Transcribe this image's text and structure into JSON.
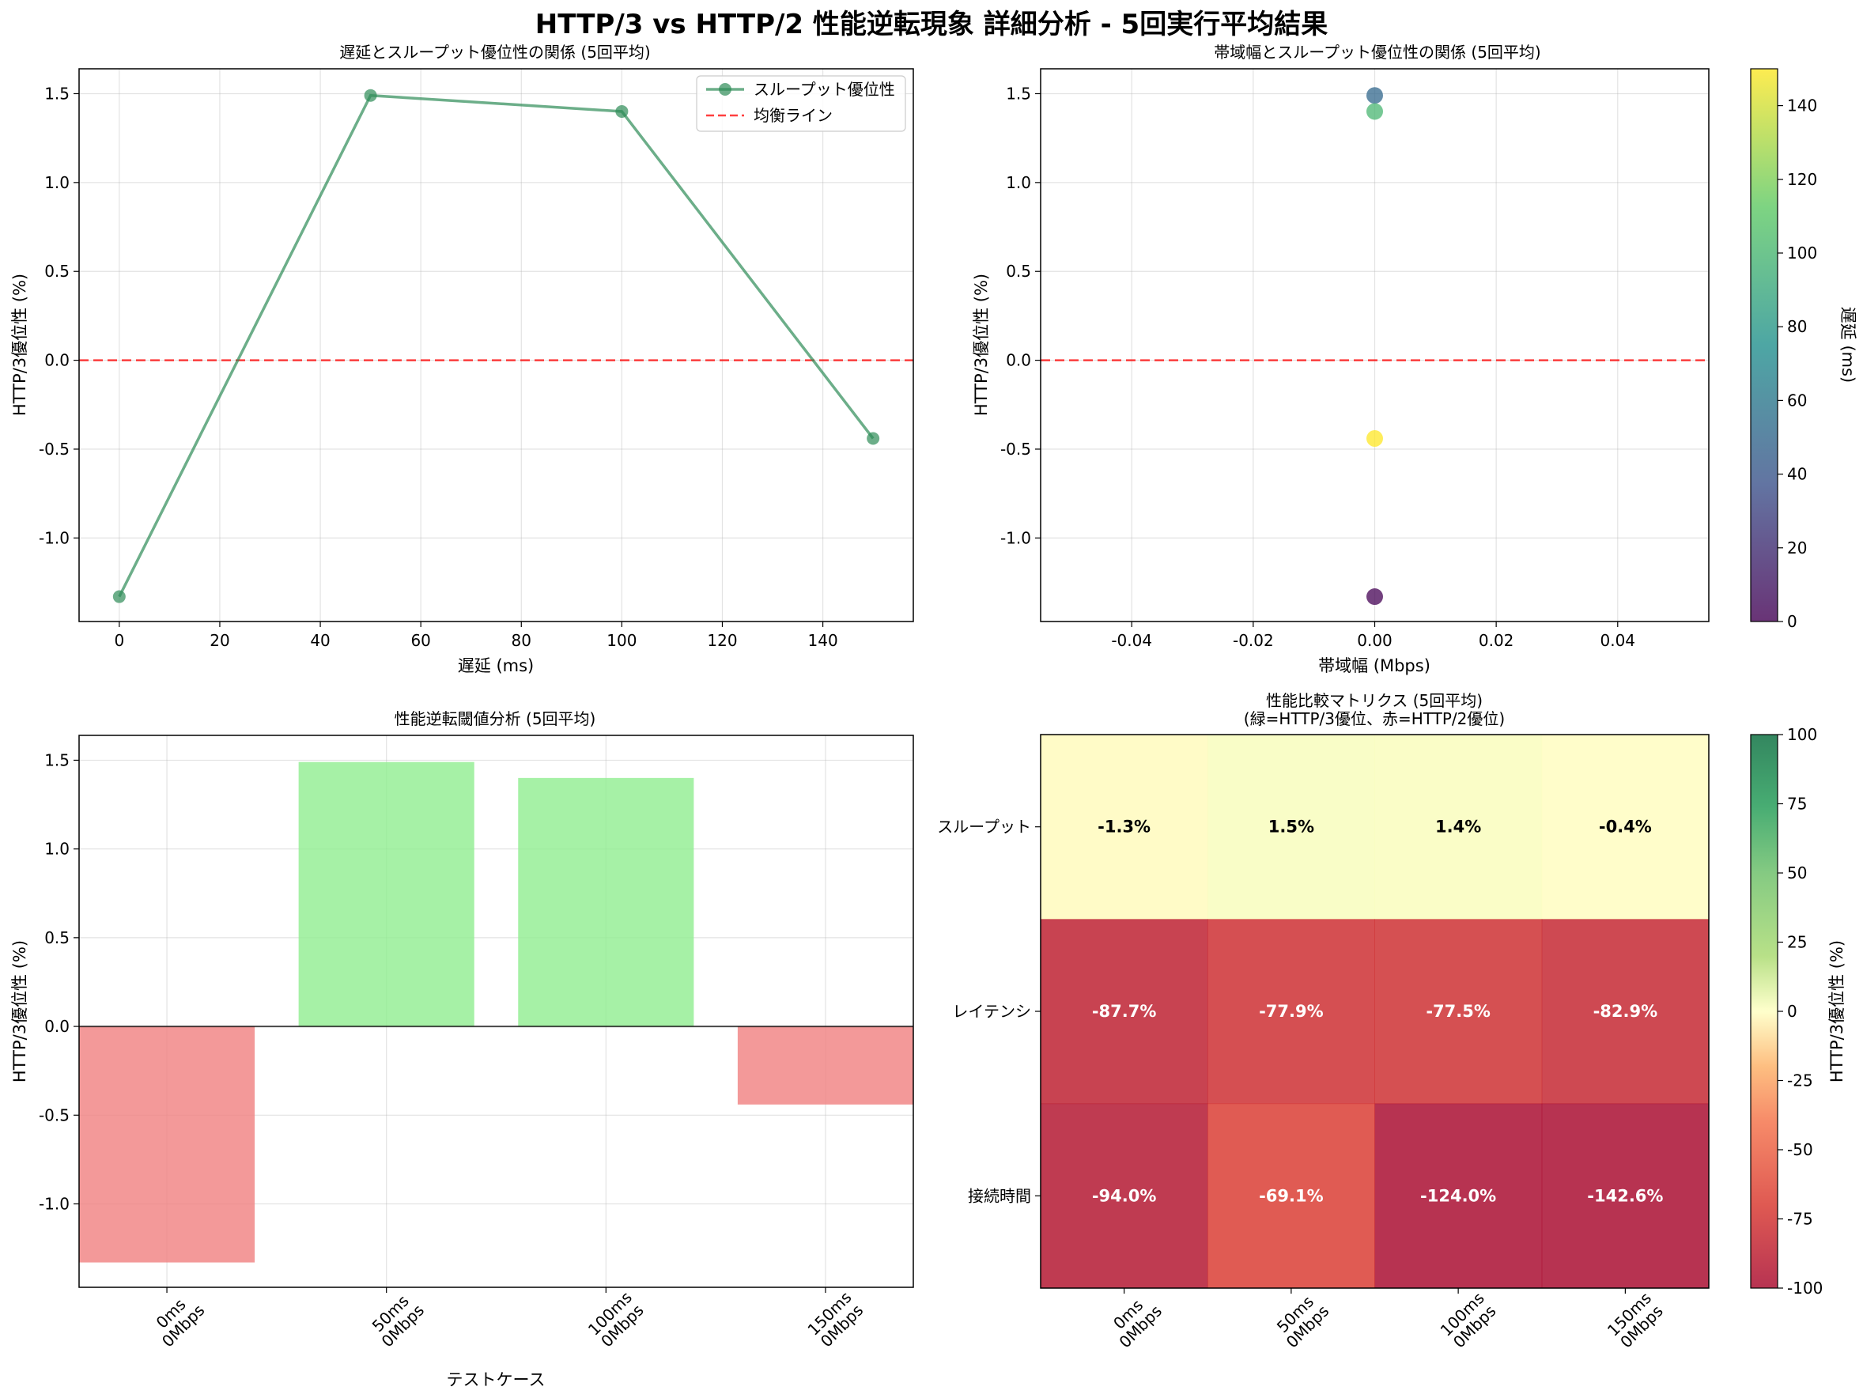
{
  "suptitle": "HTTP/3 vs HTTP/2 性能逆転現象 詳細分析 - 5回実行平均結果",
  "panels": {
    "tl": {
      "title": "遅延とスループット優位性の関係 (5回平均)",
      "xlabel": "遅延 (ms)",
      "ylabel": "HTTP/3優位性 (%)",
      "legend": [
        "スループット優位性",
        "均衡ライン"
      ]
    },
    "tr": {
      "title": "帯域幅とスループット優位性の関係 (5回平均)",
      "xlabel": "帯域幅 (Mbps)",
      "ylabel": "HTTP/3優位性 (%)",
      "cbar_label": "遅延 (ms)"
    },
    "bl": {
      "title": "性能逆転閾値分析 (5回平均)",
      "xlabel": "テストケース",
      "ylabel": "HTTP/3優位性 (%)"
    },
    "br": {
      "title_line1": "性能比較マトリクス (5回平均)",
      "title_line2": "(緑=HTTP/3優位、赤=HTTP/2優位)",
      "cbar_label": "HTTP/3優位性 (%)"
    }
  },
  "chart_data": [
    {
      "type": "line",
      "title": "遅延とスループット優位性の関係 (5回平均)",
      "xlabel": "遅延 (ms)",
      "ylabel": "HTTP/3優位性 (%)",
      "x": [
        0,
        50,
        100,
        150
      ],
      "series": [
        {
          "name": "スループット優位性",
          "values": [
            -1.33,
            1.49,
            1.4,
            -0.44
          ],
          "color": "#2e8b57"
        }
      ],
      "reference_line": {
        "name": "均衡ライン",
        "y": 0,
        "color": "#ff0000",
        "style": "dashed"
      },
      "xlim": [
        -8,
        158
      ],
      "ylim": [
        -1.47,
        1.64
      ],
      "xticks": [
        0,
        20,
        40,
        60,
        80,
        100,
        120,
        140
      ],
      "yticks": [
        -1.0,
        -0.5,
        0.0,
        0.5,
        1.0,
        1.5
      ],
      "grid": true,
      "legend_position": "top-right"
    },
    {
      "type": "scatter",
      "title": "帯域幅とスループット優位性の関係 (5回平均)",
      "xlabel": "帯域幅 (Mbps)",
      "ylabel": "HTTP/3優位性 (%)",
      "points": [
        {
          "x": 0,
          "y": -1.33,
          "latency": 0
        },
        {
          "x": 0,
          "y": 1.49,
          "latency": 50
        },
        {
          "x": 0,
          "y": 1.4,
          "latency": 100
        },
        {
          "x": 0,
          "y": -0.44,
          "latency": 150
        }
      ],
      "reference_line": {
        "y": 0,
        "color": "#ff0000",
        "style": "dashed"
      },
      "xlim": [
        -0.055,
        0.055
      ],
      "ylim": [
        -1.47,
        1.64
      ],
      "xticks": [
        -0.04,
        -0.02,
        0.0,
        0.02,
        0.04
      ],
      "xtick_labels": [
        "-0.04",
        "-0.02",
        "0.00",
        "0.02",
        "0.04"
      ],
      "yticks": [
        -1.0,
        -0.5,
        0.0,
        0.5,
        1.0,
        1.5
      ],
      "colormap": "viridis",
      "colorbar": {
        "label": "遅延 (ms)",
        "range": [
          0,
          150
        ],
        "ticks": [
          0,
          20,
          40,
          60,
          80,
          100,
          120,
          140
        ]
      },
      "grid": true
    },
    {
      "type": "bar",
      "title": "性能逆転閾値分析 (5回平均)",
      "xlabel": "テストケース",
      "ylabel": "HTTP/3優位性 (%)",
      "categories": [
        "0ms\n0Mbps",
        "50ms\n0Mbps",
        "100ms\n0Mbps",
        "150ms\n0Mbps"
      ],
      "values": [
        -1.33,
        1.49,
        1.4,
        -0.44
      ],
      "positive_color": "#90ee90",
      "negative_color": "#f08080",
      "ylim": [
        -1.47,
        1.64
      ],
      "yticks": [
        -1.0,
        -0.5,
        0.0,
        0.5,
        1.0,
        1.5
      ],
      "grid": true
    },
    {
      "type": "heatmap",
      "title": "性能比較マトリクス (5回平均)\n(緑=HTTP/3優位、赤=HTTP/2優位)",
      "rows": [
        "スループット",
        "レイテンシ",
        "接続時間"
      ],
      "columns": [
        "0ms\n0Mbps",
        "50ms\n0Mbps",
        "100ms\n0Mbps",
        "150ms\n0Mbps"
      ],
      "values": [
        [
          -1.3,
          1.5,
          1.4,
          -0.4
        ],
        [
          -87.7,
          -77.9,
          -77.5,
          -82.9
        ],
        [
          -94.0,
          -69.1,
          -124.0,
          -142.6
        ]
      ],
      "labels": [
        [
          "-1.3%",
          "1.5%",
          "1.4%",
          "-0.4%"
        ],
        [
          "-87.7%",
          "-77.9%",
          "-77.5%",
          "-82.9%"
        ],
        [
          "-94.0%",
          "-69.1%",
          "-124.0%",
          "-142.6%"
        ]
      ],
      "colormap": "RdYlGn",
      "colorbar": {
        "label": "HTTP/3優位性 (%)",
        "range": [
          -100,
          100
        ],
        "ticks": [
          100,
          75,
          50,
          25,
          0,
          -25,
          -50,
          -75,
          -100
        ]
      }
    }
  ]
}
